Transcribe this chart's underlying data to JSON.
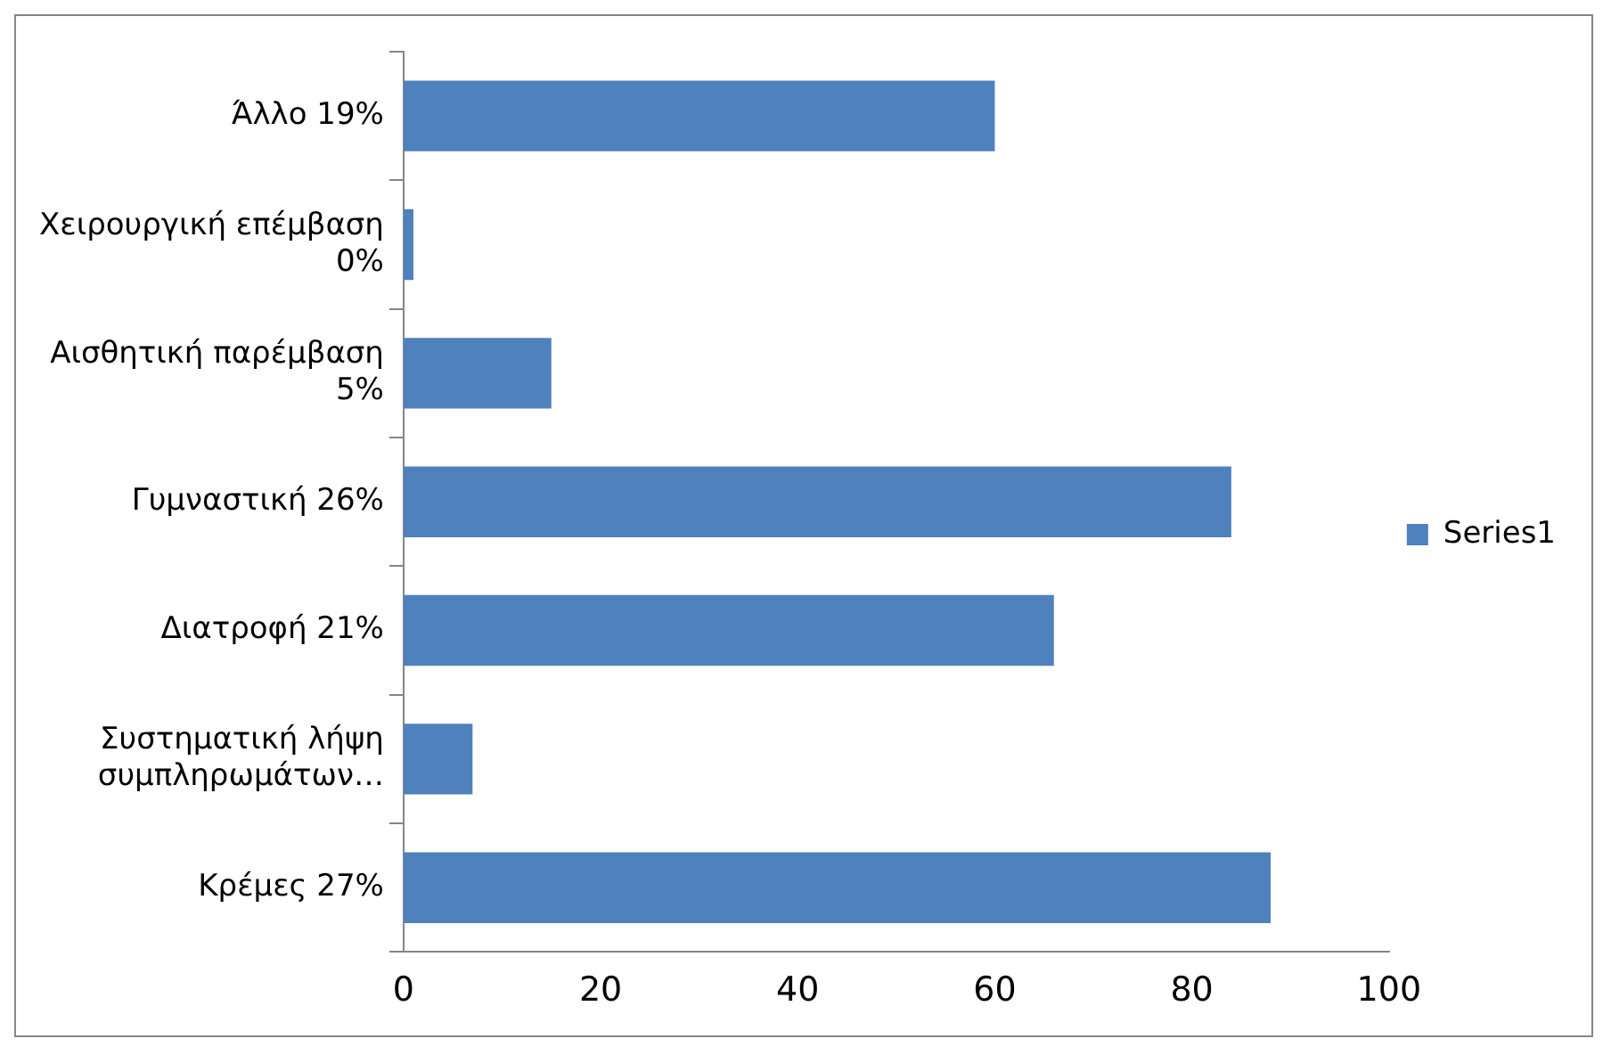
{
  "chart_data": {
    "type": "bar",
    "orientation": "horizontal",
    "categories": [
      "Άλλο 19%",
      "Χειρουργική επέμβαση 0%",
      "Αισθητική παρέμβαση 5%",
      "Γυμναστική 26%",
      "Διατροφή 21%",
      "Συστηματική λήψη συμπληρωμάτων…",
      "Κρέμες 27%"
    ],
    "series": [
      {
        "name": "Series1",
        "color": "#4f81bd",
        "values": [
          60,
          1,
          15,
          84,
          66,
          7,
          88
        ]
      }
    ],
    "xlim": [
      0,
      100
    ],
    "xticks": [
      0,
      20,
      40,
      60,
      80,
      100
    ],
    "grid": false,
    "legend": "right"
  }
}
